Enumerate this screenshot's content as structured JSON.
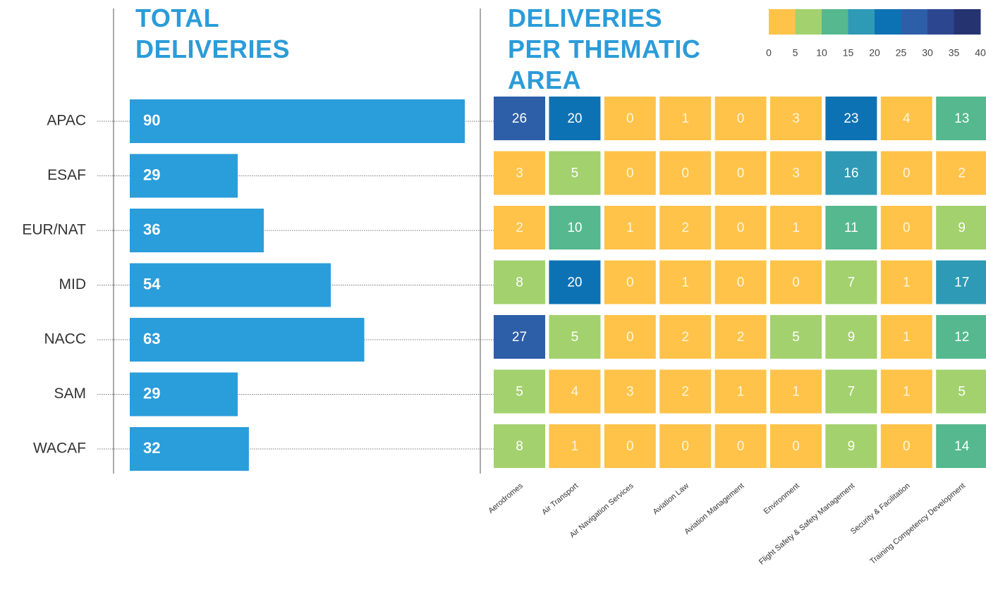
{
  "chart_data": [
    {
      "type": "bar",
      "orientation": "horizontal",
      "title": "TOTAL DELIVERIES",
      "categories": [
        "APAC",
        "ESAF",
        "EUR/NAT",
        "MID",
        "NACC",
        "SAM",
        "WACAF"
      ],
      "values": [
        90,
        29,
        36,
        54,
        63,
        29,
        32
      ],
      "color": "#2a9ddb"
    },
    {
      "type": "heatmap",
      "title": "DELIVERIES PER THEMATIC AREA",
      "x": [
        "Aerodromes",
        "Air Transport",
        "Air Navigation Services",
        "Aviation Law",
        "Aviation Management",
        "Environment",
        "Flight Safety & Safety Management",
        "Security & Facilitation",
        "Training Competency Development"
      ],
      "values": [
        [
          26,
          20,
          0,
          1,
          0,
          3,
          23,
          4,
          13
        ],
        [
          3,
          5,
          0,
          0,
          0,
          3,
          16,
          0,
          2
        ],
        [
          2,
          10,
          1,
          2,
          0,
          1,
          11,
          0,
          9
        ],
        [
          8,
          20,
          0,
          1,
          0,
          0,
          7,
          1,
          17
        ],
        [
          27,
          5,
          0,
          2,
          2,
          5,
          9,
          1,
          12
        ],
        [
          5,
          4,
          3,
          2,
          1,
          1,
          7,
          1,
          5
        ],
        [
          8,
          1,
          0,
          0,
          0,
          0,
          9,
          0,
          14
        ]
      ],
      "legend": {
        "colors": [
          "#ffc34a",
          "#a3d16e",
          "#55b88f",
          "#2e9ab5",
          "#0d72b4",
          "#2d5ea8",
          "#2d4690",
          "#253370"
        ],
        "ticks": [
          0,
          5,
          10,
          15,
          20,
          25,
          30,
          35,
          40
        ]
      }
    }
  ]
}
